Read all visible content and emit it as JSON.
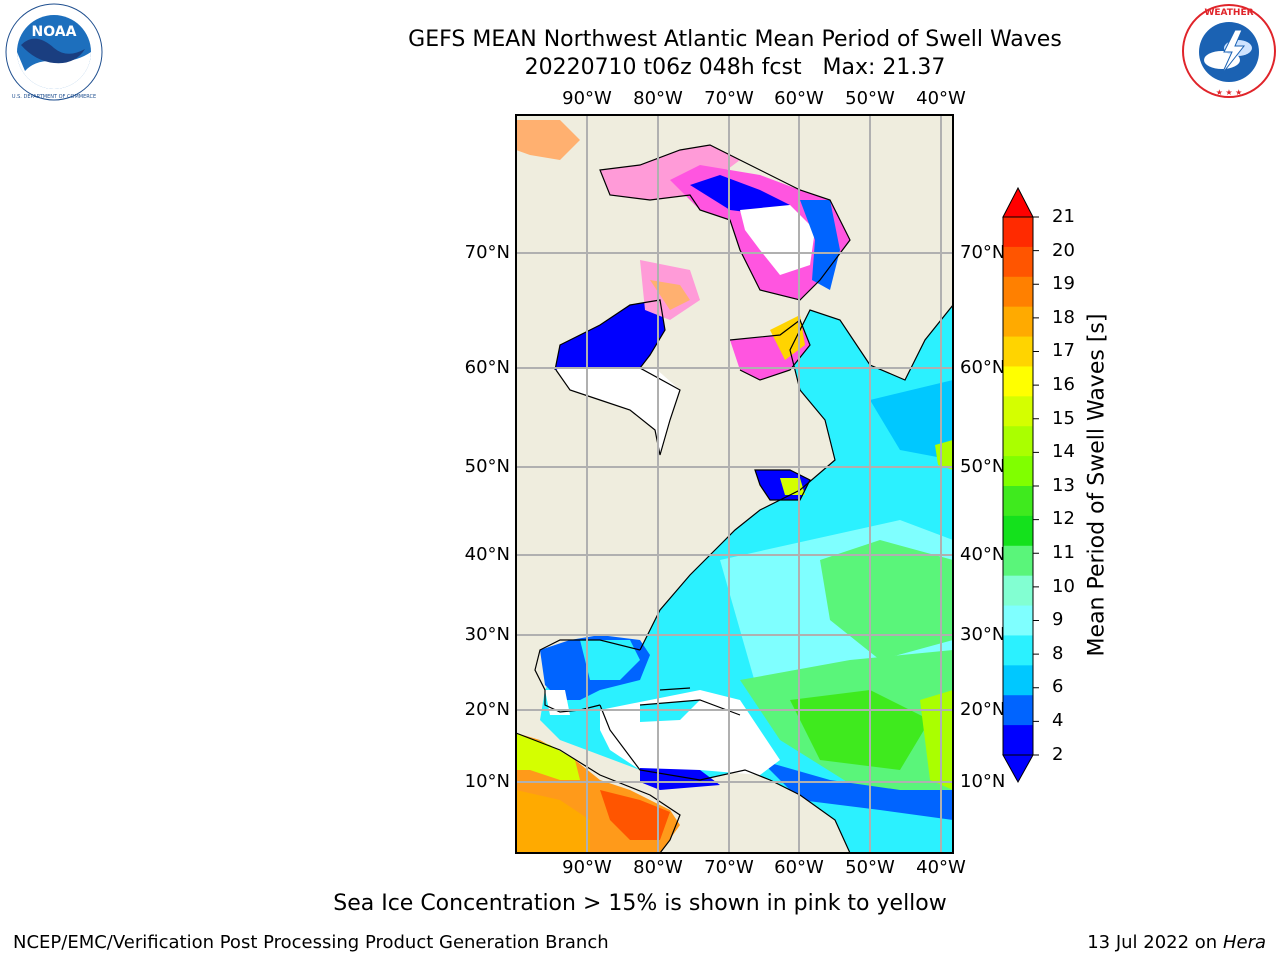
{
  "header": {
    "title_line1": "GEFS MEAN Northwest Atlantic Mean Period of Swell Waves",
    "title_line2": "20220710 t06z 048h fcst   Max: 21.37"
  },
  "logos": {
    "left": {
      "name": "NOAA",
      "ring_text": "NATIONAL OCEANIC AND ATMOSPHERIC ADMINISTRATION · U.S. DEPARTMENT OF COMMERCE"
    },
    "right": {
      "name": "NATIONAL WEATHER SERVICE"
    }
  },
  "map": {
    "lon_labels": [
      "90°W",
      "80°W",
      "70°W",
      "60°W",
      "50°W",
      "40°W"
    ],
    "lat_labels": [
      "70°N",
      "60°N",
      "50°N",
      "40°N",
      "30°N",
      "20°N",
      "10°N"
    ],
    "colors": {
      "land": "#efedde",
      "grid": "#b0b0b0",
      "coast": "#000000"
    }
  },
  "colorbar": {
    "label": "Mean Period of Swell Waves [s]",
    "ticks": [
      "21",
      "20",
      "19",
      "18",
      "17",
      "16",
      "15",
      "14",
      "13",
      "12",
      "11",
      "10",
      "9",
      "8",
      "6",
      "4",
      "2"
    ],
    "colors": [
      "#ff2a00",
      "#ff5500",
      "#ff8000",
      "#ffaa00",
      "#ffd400",
      "#ffff00",
      "#d4ff00",
      "#aaff00",
      "#80ff00",
      "#3fea1e",
      "#14e11c",
      "#5af57a",
      "#82ffd2",
      "#7fffff",
      "#2bf1ff",
      "#00c8ff",
      "#0064ff",
      "#0000ff"
    ],
    "under_color": "#0000ff",
    "over_color": "#ff0000"
  },
  "caption": "Sea Ice Concentration > 15% is shown in pink to yellow",
  "footer": {
    "left": "NCEP/EMC/Verification Post Processing Product Generation Branch",
    "right_date": "13 Jul 2022 on",
    "right_host": "Hera"
  }
}
